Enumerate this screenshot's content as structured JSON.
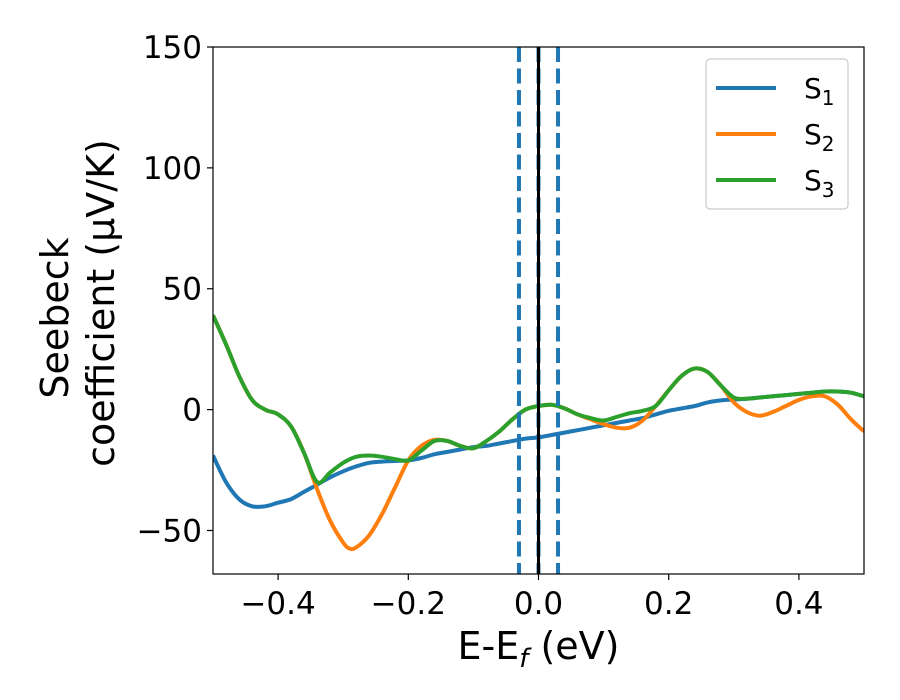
{
  "chart_data": {
    "type": "line",
    "title": "",
    "xlabel": {
      "main": "E-E",
      "sub": "f",
      "suffix": " (eV)"
    },
    "ylabel": {
      "line1": "Seebeck",
      "line2": "coefficient  (μV/K)"
    },
    "xlim": [
      -0.5,
      0.5
    ],
    "ylim": [
      -68,
      150
    ],
    "xticks": [
      -0.4,
      -0.2,
      0.0,
      0.2,
      0.4
    ],
    "xtick_labels": [
      "−0.4",
      "−0.2",
      "0.0",
      "0.2",
      "0.4"
    ],
    "yticks": [
      -50,
      0,
      50,
      100,
      150
    ],
    "ytick_labels": [
      "−50",
      "0",
      "50",
      "100",
      "150"
    ],
    "legend_position": "top-right",
    "vlines": [
      {
        "x": -0.03,
        "style": "dashed",
        "color": "#1f77b4"
      },
      {
        "x": 0.0,
        "style": "dashed",
        "color": "#1f77b4"
      },
      {
        "x": 0.0,
        "style": "solid",
        "color": "#000000"
      },
      {
        "x": 0.03,
        "style": "dashed",
        "color": "#1f77b4"
      }
    ],
    "series": [
      {
        "name": "S",
        "sub": "1",
        "color": "#1f77b4",
        "points": [
          [
            -0.5,
            -19
          ],
          [
            -0.48,
            -30
          ],
          [
            -0.46,
            -37
          ],
          [
            -0.44,
            -40
          ],
          [
            -0.42,
            -40
          ],
          [
            -0.4,
            -38.5
          ],
          [
            -0.38,
            -37
          ],
          [
            -0.36,
            -34
          ],
          [
            -0.34,
            -31
          ],
          [
            -0.32,
            -28
          ],
          [
            -0.3,
            -25.5
          ],
          [
            -0.28,
            -23.5
          ],
          [
            -0.26,
            -22
          ],
          [
            -0.24,
            -21.5
          ],
          [
            -0.22,
            -21.2
          ],
          [
            -0.2,
            -21
          ],
          [
            -0.18,
            -20
          ],
          [
            -0.16,
            -18.5
          ],
          [
            -0.14,
            -17.5
          ],
          [
            -0.12,
            -16.5
          ],
          [
            -0.1,
            -15.5
          ],
          [
            -0.08,
            -15
          ],
          [
            -0.06,
            -14
          ],
          [
            -0.04,
            -13
          ],
          [
            -0.02,
            -12
          ],
          [
            0.0,
            -11.5
          ],
          [
            0.02,
            -10.5
          ],
          [
            0.04,
            -9.5
          ],
          [
            0.06,
            -8.5
          ],
          [
            0.08,
            -7.5
          ],
          [
            0.1,
            -6.5
          ],
          [
            0.12,
            -5.5
          ],
          [
            0.14,
            -4.5
          ],
          [
            0.16,
            -3.5
          ],
          [
            0.18,
            -2
          ],
          [
            0.2,
            -0.5
          ],
          [
            0.22,
            0.5
          ],
          [
            0.24,
            1.5
          ],
          [
            0.26,
            3
          ],
          [
            0.28,
            3.8
          ],
          [
            0.3,
            4.2
          ],
          [
            0.32,
            4.5
          ],
          [
            0.34,
            5
          ],
          [
            0.36,
            5.5
          ],
          [
            0.38,
            6
          ],
          [
            0.4,
            6.5
          ],
          [
            0.42,
            7
          ],
          [
            0.44,
            7.5
          ],
          [
            0.46,
            7.5
          ],
          [
            0.48,
            7
          ],
          [
            0.5,
            5.5
          ]
        ]
      },
      {
        "name": "S",
        "sub": "2",
        "color": "#ff7f0e",
        "points": [
          [
            -0.5,
            39
          ],
          [
            -0.48,
            27
          ],
          [
            -0.46,
            14
          ],
          [
            -0.44,
            4
          ],
          [
            -0.42,
            0
          ],
          [
            -0.4,
            -2
          ],
          [
            -0.38,
            -7
          ],
          [
            -0.36,
            -18
          ],
          [
            -0.34,
            -33
          ],
          [
            -0.32,
            -46
          ],
          [
            -0.3,
            -55
          ],
          [
            -0.29,
            -57.5
          ],
          [
            -0.28,
            -57
          ],
          [
            -0.26,
            -52
          ],
          [
            -0.24,
            -43
          ],
          [
            -0.22,
            -32
          ],
          [
            -0.2,
            -21
          ],
          [
            -0.18,
            -15
          ],
          [
            -0.16,
            -12.5
          ],
          [
            -0.14,
            -13
          ],
          [
            -0.12,
            -15
          ],
          [
            -0.1,
            -16
          ],
          [
            -0.08,
            -13
          ],
          [
            -0.06,
            -9
          ],
          [
            -0.04,
            -4
          ],
          [
            -0.02,
            0
          ],
          [
            0.0,
            1.5
          ],
          [
            0.02,
            2
          ],
          [
            0.04,
            0.5
          ],
          [
            0.06,
            -2
          ],
          [
            0.08,
            -4
          ],
          [
            0.1,
            -6
          ],
          [
            0.12,
            -7.5
          ],
          [
            0.14,
            -7.5
          ],
          [
            0.16,
            -4.5
          ],
          [
            0.18,
            1.5
          ],
          [
            0.2,
            8
          ],
          [
            0.22,
            14
          ],
          [
            0.24,
            17
          ],
          [
            0.26,
            15.5
          ],
          [
            0.28,
            10
          ],
          [
            0.3,
            3
          ],
          [
            0.32,
            -1
          ],
          [
            0.34,
            -2.5
          ],
          [
            0.36,
            -1
          ],
          [
            0.38,
            1.5
          ],
          [
            0.4,
            4
          ],
          [
            0.42,
            5.5
          ],
          [
            0.44,
            5.5
          ],
          [
            0.46,
            2
          ],
          [
            0.48,
            -4
          ],
          [
            0.5,
            -9
          ]
        ]
      },
      {
        "name": "S",
        "sub": "3",
        "color": "#2ca02c",
        "points": [
          [
            -0.5,
            39
          ],
          [
            -0.48,
            27
          ],
          [
            -0.46,
            14
          ],
          [
            -0.44,
            4
          ],
          [
            -0.42,
            0
          ],
          [
            -0.4,
            -2
          ],
          [
            -0.38,
            -7
          ],
          [
            -0.36,
            -18
          ],
          [
            -0.34,
            -30
          ],
          [
            -0.32,
            -26
          ],
          [
            -0.3,
            -22
          ],
          [
            -0.28,
            -19.5
          ],
          [
            -0.26,
            -19
          ],
          [
            -0.24,
            -19.5
          ],
          [
            -0.22,
            -20.5
          ],
          [
            -0.2,
            -21
          ],
          [
            -0.18,
            -17
          ],
          [
            -0.16,
            -13
          ],
          [
            -0.14,
            -13
          ],
          [
            -0.12,
            -15
          ],
          [
            -0.1,
            -16
          ],
          [
            -0.08,
            -13
          ],
          [
            -0.06,
            -9
          ],
          [
            -0.04,
            -4
          ],
          [
            -0.02,
            0
          ],
          [
            0.0,
            1.5
          ],
          [
            0.02,
            2
          ],
          [
            0.04,
            0.5
          ],
          [
            0.06,
            -2
          ],
          [
            0.08,
            -3.5
          ],
          [
            0.1,
            -4.5
          ],
          [
            0.12,
            -3
          ],
          [
            0.14,
            -1.5
          ],
          [
            0.16,
            -0.5
          ],
          [
            0.18,
            1.5
          ],
          [
            0.2,
            8
          ],
          [
            0.22,
            14
          ],
          [
            0.24,
            17
          ],
          [
            0.26,
            15.5
          ],
          [
            0.28,
            10
          ],
          [
            0.3,
            5
          ],
          [
            0.32,
            4.5
          ],
          [
            0.34,
            5
          ],
          [
            0.36,
            5.5
          ],
          [
            0.38,
            6
          ],
          [
            0.4,
            6.5
          ],
          [
            0.42,
            7
          ],
          [
            0.44,
            7.5
          ],
          [
            0.46,
            7.5
          ],
          [
            0.48,
            7
          ],
          [
            0.5,
            5.5
          ]
        ]
      }
    ]
  }
}
